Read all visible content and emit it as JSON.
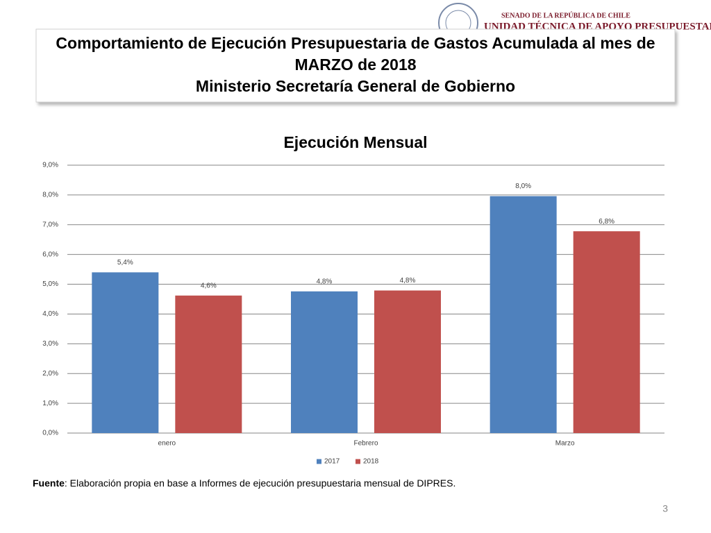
{
  "header": {
    "logo_top": "SENADO DE LA REPÚBLICA DE CHILE",
    "logo_bottom": "UNIDAD TÉCNICA DE APOYO PRESUPUESTARIO",
    "title_lines": [
      "Comportamiento de Ejecución Presupuestaria de Gastos Acumulada al mes de",
      "MARZO de 2018",
      "Ministerio Secretaría General de Gobierno"
    ]
  },
  "chart_data": {
    "type": "bar",
    "title": "Ejecución Mensual",
    "categories": [
      "enero",
      "Febrero",
      "Marzo"
    ],
    "series": [
      {
        "name": "2017",
        "color": "#4f81bd",
        "values": [
          5.4,
          4.76,
          7.96
        ],
        "value_labels": [
          "5,4%",
          "4,8%",
          "8,0%"
        ]
      },
      {
        "name": "2018",
        "color": "#c0504d",
        "values": [
          4.62,
          4.79,
          6.78
        ],
        "value_labels": [
          "4,6%",
          "4,8%",
          "6,8%"
        ]
      }
    ],
    "ylim": [
      0,
      9
    ],
    "yticks": [
      {
        "value": 0,
        "label": "0,0%"
      },
      {
        "value": 1,
        "label": "1,0%"
      },
      {
        "value": 2,
        "label": "2,0%"
      },
      {
        "value": 3,
        "label": "3,0%"
      },
      {
        "value": 4,
        "label": "4,0%"
      },
      {
        "value": 5,
        "label": "5,0%"
      },
      {
        "value": 6,
        "label": "6,0%"
      },
      {
        "value": 7,
        "label": "7,0%"
      },
      {
        "value": 8,
        "label": "8,0%"
      },
      {
        "value": 9,
        "label": "9,0%"
      }
    ],
    "grid": true,
    "legend": "bottom"
  },
  "footer": {
    "source_label": "Fuente",
    "source_text": ": Elaboración propia en base  a Informes de ejecución presupuestaria mensual de DIPRES.",
    "page": "3"
  }
}
